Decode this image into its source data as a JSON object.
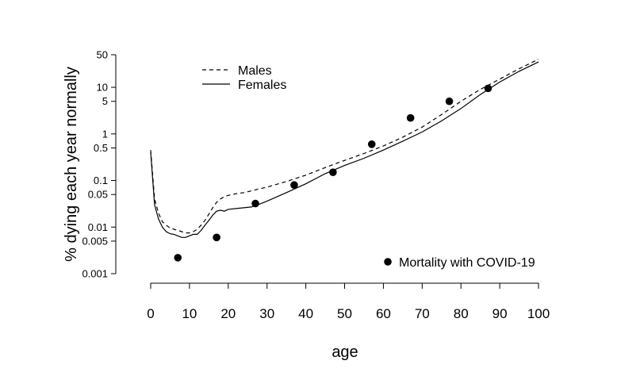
{
  "chart_data": {
    "type": "line",
    "title": "",
    "xlabel": "age",
    "ylabel": "% dying each year normally",
    "y_scale": "log",
    "xlim": [
      0,
      100
    ],
    "ylim": [
      0.001,
      50
    ],
    "x_ticks": [
      0,
      10,
      20,
      30,
      40,
      50,
      60,
      70,
      80,
      90,
      100
    ],
    "x_tick_labels": [
      "0",
      "10",
      "20",
      "30",
      "40",
      "50",
      "60",
      "70",
      "80",
      "90",
      "100"
    ],
    "y_ticks": [
      0.001,
      0.005,
      0.01,
      0.05,
      0.1,
      0.5,
      1,
      5,
      10,
      50
    ],
    "y_tick_labels": [
      "0.001",
      "0.005",
      "0.01",
      "0.05",
      "0.1",
      "0.5",
      "1",
      "5",
      "10",
      "50"
    ],
    "grid": false,
    "series": [
      {
        "name": "Males",
        "style": "dashed",
        "x": [
          0,
          1,
          2,
          3,
          4,
          5,
          6,
          7,
          8,
          9,
          10,
          11,
          12,
          13,
          14,
          15,
          16,
          17,
          18,
          19,
          20,
          22,
          24,
          26,
          28,
          30,
          35,
          40,
          45,
          50,
          55,
          60,
          65,
          70,
          75,
          80,
          85,
          90,
          95,
          100
        ],
        "y": [
          0.45,
          0.04,
          0.02,
          0.013,
          0.011,
          0.0095,
          0.009,
          0.0085,
          0.008,
          0.0075,
          0.0075,
          0.008,
          0.009,
          0.011,
          0.014,
          0.019,
          0.026,
          0.034,
          0.04,
          0.045,
          0.048,
          0.052,
          0.055,
          0.06,
          0.066,
          0.072,
          0.095,
          0.13,
          0.19,
          0.27,
          0.38,
          0.55,
          0.85,
          1.4,
          2.6,
          5,
          9,
          15,
          25,
          40
        ]
      },
      {
        "name": "Females",
        "style": "solid",
        "x": [
          0,
          1,
          2,
          3,
          4,
          5,
          6,
          7,
          8,
          9,
          10,
          11,
          12,
          13,
          14,
          15,
          16,
          17,
          18,
          19,
          20,
          22,
          24,
          26,
          28,
          30,
          35,
          40,
          45,
          50,
          55,
          60,
          65,
          70,
          75,
          80,
          85,
          90,
          95,
          100
        ],
        "y": [
          0.4,
          0.03,
          0.015,
          0.01,
          0.008,
          0.0072,
          0.007,
          0.0065,
          0.006,
          0.006,
          0.0065,
          0.007,
          0.007,
          0.0085,
          0.011,
          0.014,
          0.018,
          0.022,
          0.023,
          0.022,
          0.024,
          0.025,
          0.026,
          0.027,
          0.031,
          0.036,
          0.055,
          0.085,
          0.14,
          0.21,
          0.3,
          0.45,
          0.7,
          1.1,
          1.9,
          3.5,
          7,
          13,
          22,
          35
        ]
      },
      {
        "name": "Mortality with COVID-19",
        "style": "points",
        "x": [
          7,
          17,
          27,
          37,
          47,
          57,
          67,
          77,
          87
        ],
        "y": [
          0.0022,
          0.006,
          0.032,
          0.08,
          0.15,
          0.6,
          2.2,
          5,
          9.5
        ]
      }
    ],
    "legends": [
      {
        "position": "top-left",
        "entries": [
          "Males",
          "Females"
        ]
      },
      {
        "position": "bottom-right",
        "entries": [
          "Mortality with COVID-19"
        ]
      }
    ]
  }
}
